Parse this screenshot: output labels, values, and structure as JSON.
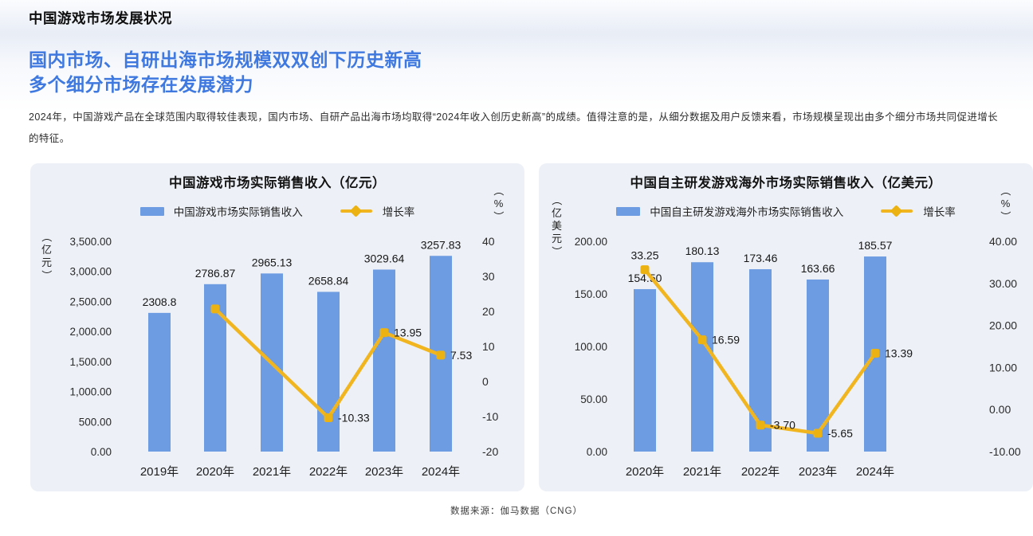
{
  "page": {
    "header": "中国游戏市场发展状况",
    "subtitle_line1": "国内市场、自研出海市场规模双双创下历史新高",
    "subtitle_line2": "多个细分市场存在发展潜力",
    "paragraph": "2024年，中国游戏产品在全球范围内取得较佳表现，国内市场、自研产品出海市场均取得“2024年收入创历史新高”的成绩。值得注意的是，从细分数据及用户反馈来看，市场规模呈现出由多个细分市场共同促进增长的特征。",
    "footer": "数据来源：伽马数据（CNG）"
  },
  "colors": {
    "bar": "#6d9ce2",
    "line": "#f1b51f",
    "marker": "#ecb211",
    "accent_blue": "#3f79e0",
    "panel_bg": "#edf1f7"
  },
  "chart_data": [
    {
      "type": "bar+line",
      "title": "中国游戏市场实际销售收入（亿元）",
      "legend": {
        "bar": "中国游戏市场实际销售收入",
        "line": "增长率"
      },
      "categories": [
        "2019年",
        "2020年",
        "2021年",
        "2022年",
        "2023年",
        "2024年"
      ],
      "left_axis": {
        "unit": "（亿元）",
        "min": 0,
        "max": 3500,
        "tick_labels": [
          "3,500.00",
          "3,000.00",
          "2,500.00",
          "2,000.00",
          "1,500.00",
          "1,000.00",
          "500.00",
          "0.00"
        ]
      },
      "right_axis": {
        "unit": "（%）",
        "min": -20,
        "max": 40,
        "tick_labels": [
          "40",
          "30",
          "20",
          "10",
          "0",
          "-10",
          "-20"
        ]
      },
      "bar_series": {
        "name": "中国游戏市场实际销售收入",
        "values": [
          2308.8,
          2786.87,
          2965.13,
          2658.84,
          3029.64,
          3257.83
        ],
        "labels": [
          "2308.8",
          "2786.87",
          "2965.13",
          "2658.84",
          "3029.64",
          "3257.83"
        ]
      },
      "line_series": {
        "name": "增长率",
        "values_by_category": [
          null,
          20.71,
          null,
          -10.33,
          13.95,
          7.53
        ],
        "points": [
          {
            "category_index": 1,
            "value": 20.71,
            "label": "",
            "label_pos": "none"
          },
          {
            "category_index": 3,
            "value": -10.33,
            "label": "-10.33",
            "label_pos": "right"
          },
          {
            "category_index": 4,
            "value": 13.95,
            "label": "13.95",
            "label_pos": "right"
          },
          {
            "category_index": 5,
            "value": 7.53,
            "label": "7.53",
            "label_pos": "right"
          }
        ]
      }
    },
    {
      "type": "bar+line",
      "title": "中国自主研发游戏海外市场实际销售收入（亿美元）",
      "legend": {
        "bar": "中国自主研发游戏海外市场实际销售收入",
        "line": "增长率"
      },
      "categories": [
        "2020年",
        "2021年",
        "2022年",
        "2023年",
        "2024年"
      ],
      "left_axis": {
        "unit": "（亿美元）",
        "min": 0,
        "max": 200,
        "tick_labels": [
          "200.00",
          "150.00",
          "100.00",
          "50.00",
          "0.00"
        ]
      },
      "right_axis": {
        "unit": "（%）",
        "min": -10,
        "max": 40,
        "tick_labels": [
          "40.00",
          "30.00",
          "20.00",
          "10.00",
          "0.00",
          "-10.00"
        ]
      },
      "bar_series": {
        "name": "中国自主研发游戏海外市场实际销售收入",
        "values": [
          154.5,
          180.13,
          173.46,
          163.66,
          185.57
        ],
        "labels": [
          "154.50",
          "180.13",
          "173.46",
          "163.66",
          "185.57"
        ]
      },
      "line_series": {
        "name": "增长率",
        "values_by_category": [
          33.25,
          16.59,
          -3.7,
          -5.65,
          13.39
        ],
        "points": [
          {
            "category_index": 0,
            "value": 33.25,
            "label": "33.25",
            "label_pos": "above"
          },
          {
            "category_index": 1,
            "value": 16.59,
            "label": "16.59",
            "label_pos": "right"
          },
          {
            "category_index": 2,
            "value": -3.7,
            "label": "-3.70",
            "label_pos": "right"
          },
          {
            "category_index": 3,
            "value": -5.65,
            "label": "-5.65",
            "label_pos": "right"
          },
          {
            "category_index": 4,
            "value": 13.39,
            "label": "13.39",
            "label_pos": "right"
          }
        ]
      }
    }
  ]
}
